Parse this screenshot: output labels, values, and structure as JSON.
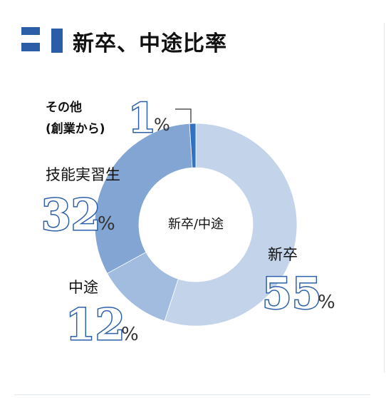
{
  "heading": {
    "title": "新卒、中途比率"
  },
  "colors": {
    "accent": "#2c5ea8",
    "number_stroke": "#2d60ab",
    "divider": "#dfe7f1"
  },
  "chart_data": {
    "type": "pie",
    "center_label": "新卒/中途",
    "start": "top",
    "direction": "clockwise",
    "segments": [
      {
        "label": "新卒",
        "value": 55,
        "color": "#c2d3ea"
      },
      {
        "label": "中途",
        "value": 12,
        "color": "#a1bcde"
      },
      {
        "label": "技能実習生",
        "value": 32,
        "color": "#82a5d3"
      },
      {
        "label": "その他",
        "sublabel": "(創業から)",
        "value": 1,
        "color": "#3170c2"
      }
    ],
    "percent_sign": "%"
  }
}
